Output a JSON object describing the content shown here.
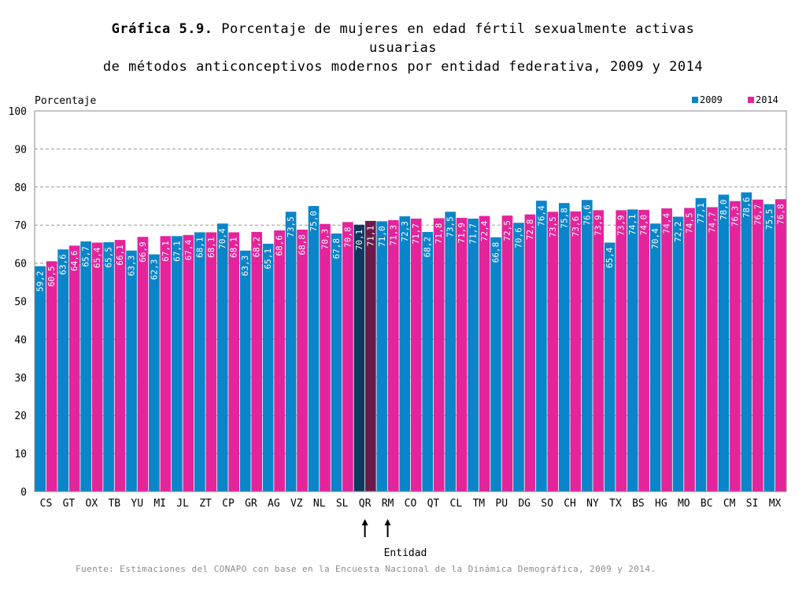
{
  "title_bold": "Gráfica 5.9.",
  "title_line1": "Porcentaje de mujeres en edad fértil sexualmente activas",
  "title_line2": "usuarias",
  "title_line3": "de métodos anticonceptivos modernos por entidad federativa, 2009 y 2014",
  "source": "Fuente: Estimaciones del CONAPO con base en la Encuesta Nacional de la Dinámica Demográfica, 2009 y 2014.",
  "colors": {
    "series_2009": "#0a85c9",
    "series_2014": "#e4249b",
    "highlight_2009": "#0b3a5e",
    "highlight_2014": "#6d1a4a",
    "gridline": "#9a9a9a"
  },
  "chart_data": {
    "type": "bar",
    "ylabel": "Porcentaje",
    "xlabel": "Entidad",
    "ylim": [
      0,
      100
    ],
    "yticks": [
      0,
      10,
      20,
      30,
      40,
      50,
      60,
      70,
      80,
      90,
      100
    ],
    "grid": "dashed horizontal",
    "legend_position": "top-right",
    "highlighted_categories": [
      "QR"
    ],
    "arrows_under": [
      "QR",
      "RM"
    ],
    "categories": [
      "CS",
      "GT",
      "OX",
      "TB",
      "YU",
      "MI",
      "JL",
      "ZT",
      "CP",
      "GR",
      "AG",
      "VZ",
      "NL",
      "SL",
      "QR",
      "RM",
      "CO",
      "QT",
      "CL",
      "TM",
      "PU",
      "DG",
      "SO",
      "CH",
      "NY",
      "TX",
      "BS",
      "HG",
      "MO",
      "BC",
      "CM",
      "SI",
      "MX"
    ],
    "series": [
      {
        "name": "2009",
        "values": [
          59.2,
          63.6,
          65.7,
          65.5,
          63.3,
          62.3,
          67.1,
          68.1,
          70.4,
          63.3,
          65.1,
          73.5,
          75.0,
          67.8,
          70.1,
          71.0,
          72.3,
          68.2,
          73.5,
          71.7,
          66.8,
          70.6,
          76.4,
          75.8,
          76.6,
          65.4,
          74.1,
          70.4,
          72.2,
          77.1,
          78.0,
          78.6,
          75.5
        ],
        "labels": [
          "59,2",
          "63,6",
          "65,7",
          "65,5",
          "63,3",
          "62,3",
          "67,1",
          "68,1",
          "70,4",
          "63,3",
          "65,1",
          "73,5",
          "75,0",
          "67,8",
          "70,1",
          "71,0",
          "72,3",
          "68,2",
          "73,5",
          "71,7",
          "66,8",
          "70,6",
          "76,4",
          "75,8",
          "76,6",
          "65,4",
          "74,1",
          "70,4",
          "72,2",
          "77,1",
          "78,0",
          "78,6",
          "75,5"
        ]
      },
      {
        "name": "2014",
        "values": [
          60.5,
          64.6,
          65.4,
          66.1,
          66.9,
          67.1,
          67.4,
          68.1,
          68.1,
          68.2,
          68.6,
          68.8,
          70.3,
          70.8,
          71.1,
          71.3,
          71.7,
          71.8,
          71.9,
          72.4,
          72.5,
          72.8,
          73.5,
          73.6,
          73.9,
          73.9,
          74.0,
          74.4,
          74.5,
          74.7,
          76.3,
          76.7,
          76.8
        ],
        "labels": [
          "60,5",
          "64,6",
          "65,4",
          "66,1",
          "66,9",
          "67,1",
          "67,4",
          "68,1",
          "68,1",
          "68,2",
          "68,6",
          "68,8",
          "70,3",
          "70,8",
          "71,1",
          "71,3",
          "71,7",
          "71,8",
          "71,9",
          "72,4",
          "72,5",
          "72,8",
          "73,5",
          "73,6",
          "73,9",
          "73,9",
          "74,0",
          "74,4",
          "74,5",
          "74,7",
          "76,3",
          "76,7",
          "76,8"
        ]
      }
    ]
  }
}
